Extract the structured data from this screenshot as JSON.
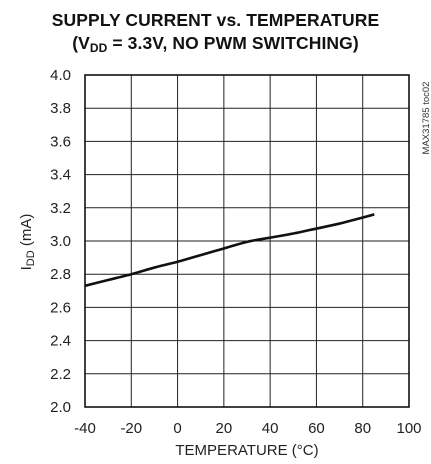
{
  "chart_data": {
    "type": "line",
    "title_line1": "SUPPLY CURRENT vs. TEMPERATURE",
    "title_line2_prefix": "(V",
    "title_line2_sub": "DD",
    "title_line2_suffix": " = 3.3V, NO PWM SWITCHING)",
    "xlabel": "TEMPERATURE (°C)",
    "ylabel_main": "I",
    "ylabel_sub": "DD",
    "ylabel_suffix": " (mA)",
    "side_note": "MAX31785 toc02",
    "xlim": [
      -40,
      100
    ],
    "ylim": [
      2.0,
      4.0
    ],
    "x_ticks": [
      "-40",
      "-20",
      "0",
      "20",
      "40",
      "60",
      "80",
      "100"
    ],
    "y_ticks": [
      "2.0",
      "2.2",
      "2.4",
      "2.6",
      "2.8",
      "3.0",
      "3.2",
      "3.4",
      "3.6",
      "3.8",
      "4.0"
    ],
    "grid": true,
    "series": [
      {
        "color": "#111111",
        "x": [
          -40,
          -30,
          -20,
          -10,
          0,
          10,
          20,
          30,
          40,
          50,
          60,
          70,
          85
        ],
        "y": [
          2.73,
          2.765,
          2.8,
          2.84,
          2.875,
          2.915,
          2.955,
          2.995,
          3.02,
          3.045,
          3.075,
          3.105,
          3.16
        ]
      }
    ]
  }
}
